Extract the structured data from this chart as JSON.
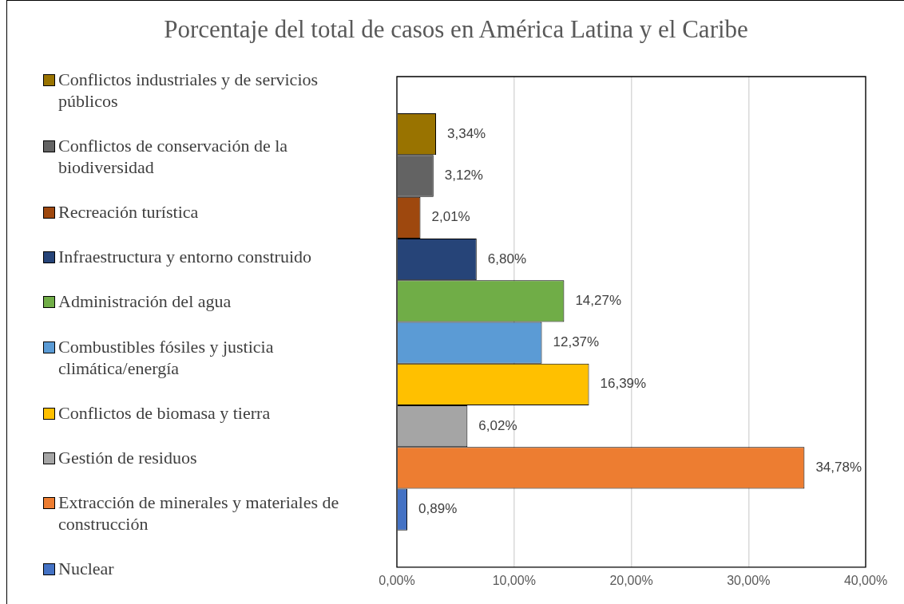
{
  "chart_data": {
    "type": "bar",
    "orientation": "horizontal",
    "title": "Porcentaje del total de casos en América Latina y el Caribe",
    "categories": [
      null
    ],
    "series": [
      {
        "name": "Conflictos industriales y de servicios públicos",
        "color": "#997300",
        "values": [
          3.34
        ],
        "value_labels": [
          "3,34%"
        ]
      },
      {
        "name": "Conflictos de conservación de la biodiversidad",
        "color": "#636363",
        "values": [
          3.12
        ],
        "value_labels": [
          "3,12%"
        ]
      },
      {
        "name": "Recreación turística",
        "color": "#9e480e",
        "values": [
          2.01
        ],
        "value_labels": [
          "2,01%"
        ]
      },
      {
        "name": "Infraestructura y entorno construido",
        "color": "#264478",
        "values": [
          6.8
        ],
        "value_labels": [
          "6,80%"
        ]
      },
      {
        "name": "Administración del agua",
        "color": "#70ad47",
        "values": [
          14.27
        ],
        "value_labels": [
          "14,27%"
        ]
      },
      {
        "name": "Combustibles fósiles y justicia climática/energía",
        "color": "#5b9bd5",
        "values": [
          12.37
        ],
        "value_labels": [
          "12,37%"
        ]
      },
      {
        "name": "Conflictos de biomasa y tierra",
        "color": "#ffc000",
        "values": [
          16.39
        ],
        "value_labels": [
          "16,39%"
        ]
      },
      {
        "name": "Gestión de residuos",
        "color": "#a5a5a5",
        "values": [
          6.02
        ],
        "value_labels": [
          "6,02%"
        ]
      },
      {
        "name": "Extracción de minerales y materiales de construcción",
        "color": "#ed7d31",
        "values": [
          34.78
        ],
        "value_labels": [
          "34,78%"
        ]
      },
      {
        "name": "Nuclear",
        "color": "#4472c4",
        "values": [
          0.89
        ],
        "value_labels": [
          "0,89%"
        ]
      }
    ],
    "xlim": [
      0,
      40
    ],
    "xticks": [
      {
        "value": 0,
        "label": "0,00%"
      },
      {
        "value": 10,
        "label": "10,00%"
      },
      {
        "value": 20,
        "label": "20,00%"
      },
      {
        "value": 30,
        "label": "30,00%"
      },
      {
        "value": 40,
        "label": "40,00%"
      }
    ],
    "grid": "x",
    "legend": "left"
  }
}
